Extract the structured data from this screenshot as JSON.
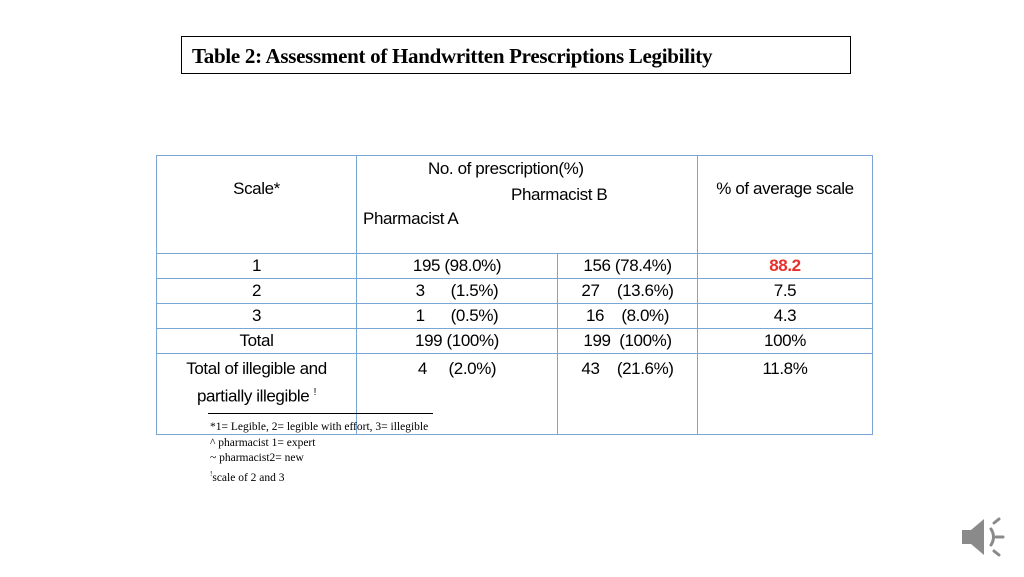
{
  "title": "Table 2: Assessment of Handwritten Prescriptions Legibility",
  "table": {
    "header": {
      "scale": "Scale*",
      "count": "No. of prescription(%)",
      "pharmacist_b": "Pharmacist B",
      "pharmacist_a": "Pharmacist A",
      "average": "% of average scale"
    },
    "rows": [
      {
        "scale": "1",
        "a": "195  (98.0%)",
        "b": "156  (78.4%)",
        "avg": "88.2"
      },
      {
        "scale": "2",
        "a": "3      (1.5%)",
        "b": "27    (13.6%)",
        "avg": "7.5"
      },
      {
        "scale": "3",
        "a": "1      (0.5%)",
        "b": "16    (8.0%)",
        "avg": "4.3"
      },
      {
        "scale": "Total",
        "a": "199 (100%)",
        "b": "199  (100%)",
        "avg": "100%"
      },
      {
        "scale_line1": "Total of illegible and",
        "scale_line2": "partially illegible",
        "scale_mark": "!",
        "a": "4     (2.0%)",
        "b": "43    (21.6%)",
        "avg": "11.8%"
      }
    ],
    "highlight_color": "#e8302a"
  },
  "footnotes": [
    "*1= Legible, 2= legible with effort, 3=  illegible",
    "^ pharmacist 1= expert",
    "~ pharmacist2= new",
    "scale of 2 and 3"
  ],
  "footnote_mark": "!",
  "audio_icon": "speaker-icon"
}
